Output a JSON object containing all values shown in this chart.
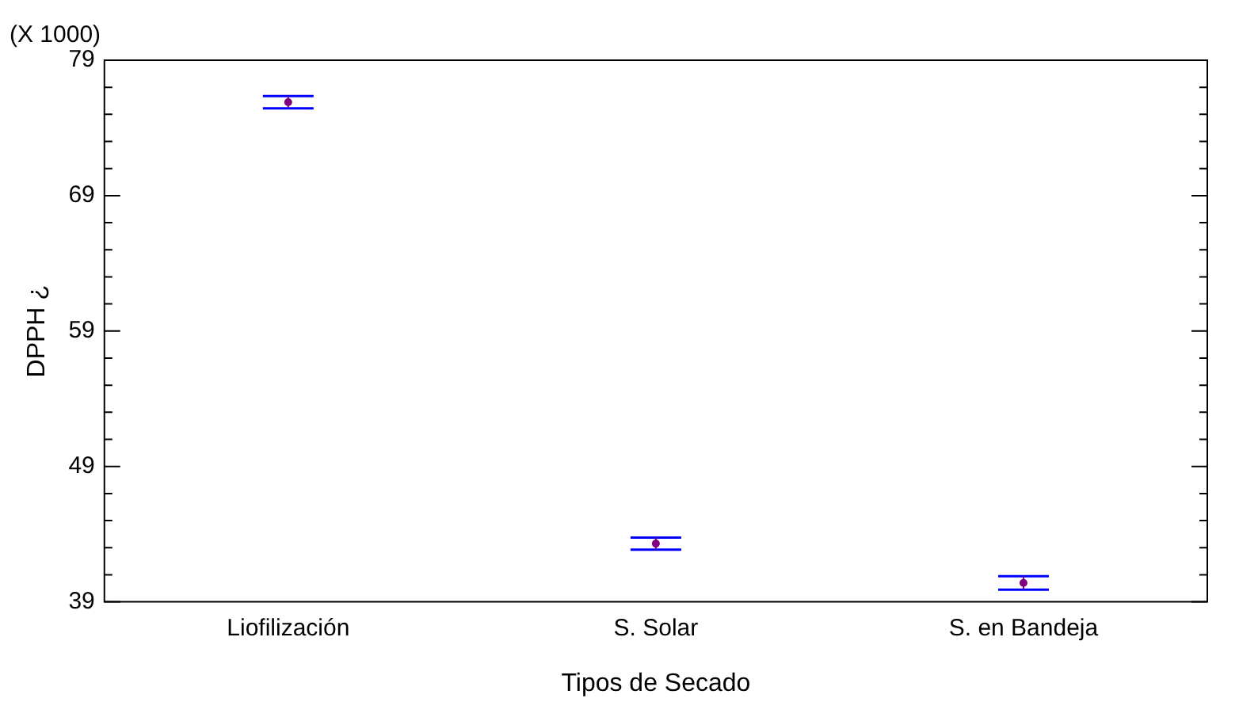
{
  "chart_data": {
    "type": "scatter",
    "xlabel": "Tipos de Secado",
    "ylabel": "DPPH ¿",
    "annotations": [
      "(X 1000)"
    ],
    "categories": [
      "Liofilización",
      "S. Solar",
      "S. en Bandeja"
    ],
    "series": [
      {
        "color": "#800080",
        "values": [
          75.9,
          43.3,
          40.4
        ],
        "errors": [
          0.45,
          0.45,
          0.5
        ]
      }
    ],
    "ylim": [
      39,
      79
    ],
    "yticks": [
      39,
      49,
      59,
      69,
      79
    ],
    "grid": false,
    "legend": false,
    "marker": "circle"
  }
}
